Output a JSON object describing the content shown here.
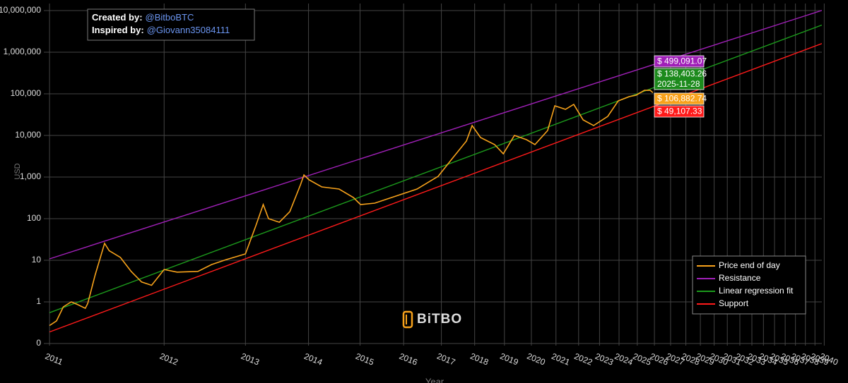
{
  "chart_data": {
    "type": "line",
    "credits": [
      {
        "label": "Created by:",
        "handle": "@BitboBTC"
      },
      {
        "label": "Inspired by:",
        "handle": "@Giovann35084111"
      }
    ],
    "xlabel": "Year",
    "ylabel": "USD",
    "watermark": "BiTBO",
    "xscale": "log",
    "yscale": "log",
    "grid": true,
    "legend": "bottom-right",
    "xlim": [
      2010.96,
      2039.74
    ],
    "xticks": [
      2011,
      2012,
      2013,
      2014,
      2015,
      2016,
      2017,
      2018,
      2019,
      2020,
      2021,
      2022,
      2023,
      2024,
      2025,
      2026,
      2027,
      2028,
      2029,
      2030,
      2031,
      2032,
      2033,
      2034,
      2035,
      2036,
      2037,
      2038,
      2039,
      2040
    ],
    "ylim": [
      0.1,
      10000000
    ],
    "yticks": [
      {
        "value": 0.1,
        "label": "0"
      },
      1,
      10,
      100,
      {
        "value": 1000,
        "label": "1,000"
      },
      {
        "value": 10000,
        "label": "10,000"
      },
      {
        "value": 100000,
        "label": "100,000"
      },
      {
        "value": 1000000,
        "label": "1,000,000"
      },
      {
        "value": 10000000,
        "label": "10,000,000"
      }
    ],
    "series": [
      {
        "name": "Price end of day",
        "color": "#f7a21b",
        "x": [
          2011.0,
          2011.05,
          2011.1,
          2011.16,
          2011.21,
          2011.27,
          2011.29,
          2011.35,
          2011.43,
          2011.47,
          2011.57,
          2011.67,
          2011.77,
          2011.87,
          2012.0,
          2012.14,
          2012.38,
          2012.55,
          2012.74,
          2013.0,
          2013.15,
          2013.26,
          2013.34,
          2013.51,
          2013.68,
          2013.86,
          2013.92,
          2014.01,
          2014.24,
          2014.57,
          2014.86,
          2015.01,
          2015.32,
          2015.81,
          2016.34,
          2016.91,
          2017.31,
          2017.74,
          2017.92,
          2018.19,
          2018.66,
          2018.96,
          2019.36,
          2019.81,
          2020.14,
          2020.65,
          2020.95,
          2021.41,
          2021.78,
          2022.21,
          2022.71,
          2023.41,
          2023.96,
          2024.54,
          2024.93,
          2025.41,
          2025.75,
          2025.91
        ],
        "values": [
          0.27,
          0.35,
          0.76,
          1,
          0.86,
          0.7,
          0.92,
          4.4,
          25.5,
          17,
          11.7,
          5.4,
          3.0,
          2.5,
          6.0,
          5.2,
          5.4,
          7.9,
          10.4,
          14.2,
          68,
          218,
          100,
          82,
          148,
          650,
          1120,
          855,
          580,
          515,
          322,
          218,
          236,
          349,
          515,
          1040,
          2760,
          7310,
          17300,
          8890,
          6030,
          3620,
          10000,
          7910,
          6030,
          13100,
          51500,
          42400,
          55700,
          23600,
          17300,
          28700,
          67700,
          85500,
          92500,
          121000,
          121000,
          106882.74
        ]
      },
      {
        "name": "Resistance",
        "color": "#a020b8",
        "x": [
          2011.0,
          2039.74
        ],
        "values": [
          10.8,
          10070000
        ]
      },
      {
        "name": "Linear regression fit",
        "color": "#1c9a1c",
        "x": [
          2011.0,
          2039.74
        ],
        "values": [
          0.55,
          4490000
        ]
      },
      {
        "name": "Support",
        "color": "#ff1a1a",
        "x": [
          2011.0,
          2039.74
        ],
        "values": [
          0.19,
          1610000
        ]
      }
    ],
    "annotations": [
      {
        "text": "$ 499,091.07",
        "color": "#a020b8"
      },
      {
        "text": "$ 138,403.26",
        "color": "#1c8a1c",
        "date": "2025-11-28"
      },
      {
        "text": "$ 106,882.74",
        "color": "#f7a21b"
      },
      {
        "text": "$ 49,107.33",
        "color": "#ff1a1a"
      }
    ]
  }
}
